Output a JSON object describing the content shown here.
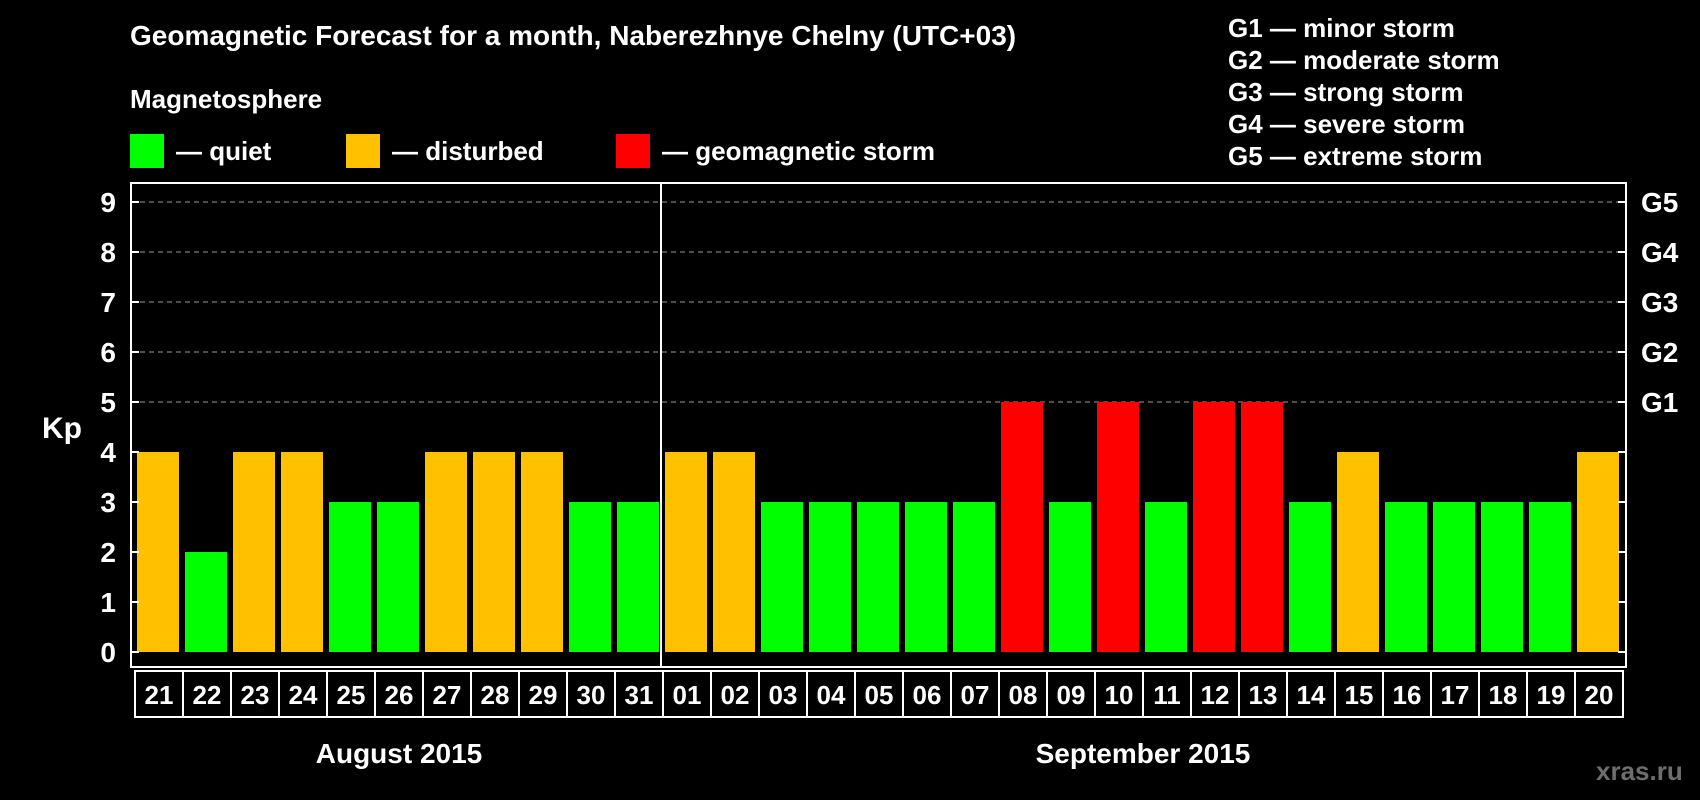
{
  "chart_data": {
    "type": "bar",
    "title": "Geomagnetic Forecast for a month, Naberezhnye Chelny (UTC+03)",
    "subtitle": "Magnetosphere",
    "ylabel": "Kp",
    "ylim": [
      0,
      9
    ],
    "yticks": [
      "0",
      "1",
      "2",
      "3",
      "4",
      "5",
      "6",
      "7",
      "8",
      "9"
    ],
    "grid": "dashed gridlines at Kp 5 to 9",
    "right_axis_labels": [
      {
        "kp": 5,
        "label": "G1"
      },
      {
        "kp": 6,
        "label": "G2"
      },
      {
        "kp": 7,
        "label": "G3"
      },
      {
        "kp": 8,
        "label": "G4"
      },
      {
        "kp": 9,
        "label": "G5"
      }
    ],
    "categories": [
      "21",
      "22",
      "23",
      "24",
      "25",
      "26",
      "27",
      "28",
      "29",
      "30",
      "31",
      "01",
      "02",
      "03",
      "04",
      "05",
      "06",
      "07",
      "08",
      "09",
      "10",
      "11",
      "12",
      "13",
      "14",
      "15",
      "16",
      "17",
      "18",
      "19",
      "20"
    ],
    "values": [
      4,
      2,
      4,
      4,
      3,
      3,
      4,
      4,
      4,
      3,
      3,
      4,
      4,
      3,
      3,
      3,
      3,
      3,
      5,
      3,
      5,
      3,
      5,
      5,
      3,
      4,
      3,
      3,
      3,
      3,
      4
    ],
    "status": [
      "disturbed",
      "quiet",
      "disturbed",
      "disturbed",
      "quiet",
      "quiet",
      "disturbed",
      "disturbed",
      "disturbed",
      "quiet",
      "quiet",
      "disturbed",
      "disturbed",
      "quiet",
      "quiet",
      "quiet",
      "quiet",
      "quiet",
      "storm",
      "quiet",
      "storm",
      "quiet",
      "storm",
      "storm",
      "quiet",
      "disturbed",
      "quiet",
      "quiet",
      "quiet",
      "quiet",
      "disturbed"
    ],
    "months": [
      {
        "label": "August 2015",
        "first_index": 0,
        "last_index": 10
      },
      {
        "label": "September 2015",
        "first_index": 11,
        "last_index": 30
      }
    ],
    "legend": [
      {
        "key": "quiet",
        "label": "— quiet",
        "color": "#00ff00"
      },
      {
        "key": "disturbed",
        "label": "— disturbed",
        "color": "#ffc000"
      },
      {
        "key": "storm",
        "label": "— geomagnetic storm",
        "color": "#ff0000"
      }
    ],
    "g_scale_legend": [
      "G1 — minor storm",
      "G2 — moderate storm",
      "G3 — strong storm",
      "G4 — severe storm",
      "G5 — extreme storm"
    ]
  },
  "watermark": "xras.ru"
}
